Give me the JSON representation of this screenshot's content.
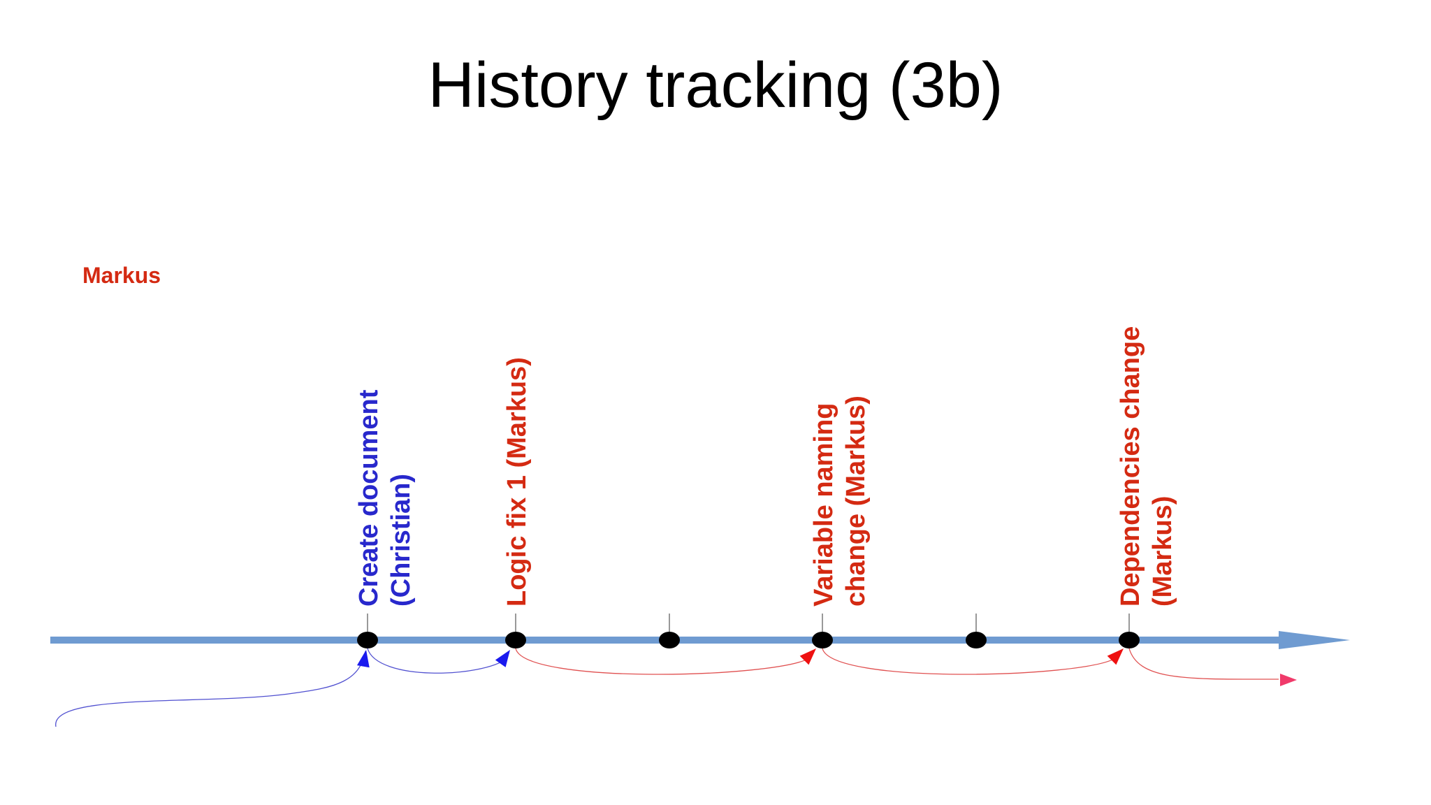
{
  "title": "History tracking (3b)",
  "person_label": "Markus",
  "colors": {
    "christian": "#2828cc",
    "markus": "#d42a12",
    "timeline": "#6f9bd1",
    "link_markus": "#e05050",
    "link_christian": "#5050d0",
    "node": "#000000",
    "arrowhead_end": "#f03a6a"
  },
  "events": [
    {
      "author": "christian",
      "lines": [
        "Create document",
        "(Christian)"
      ],
      "labeled": true
    },
    {
      "author": "markus",
      "lines": [
        "Logic fix 1 (Markus)"
      ],
      "labeled": true
    },
    {
      "author": "none",
      "lines": [],
      "labeled": false
    },
    {
      "author": "markus",
      "lines": [
        "Variable naming",
        "change (Markus)"
      ],
      "labeled": true
    },
    {
      "author": "none",
      "lines": [],
      "labeled": false
    },
    {
      "author": "markus",
      "lines": [
        "Dependencies change",
        "(Markus)"
      ],
      "labeled": true
    }
  ]
}
